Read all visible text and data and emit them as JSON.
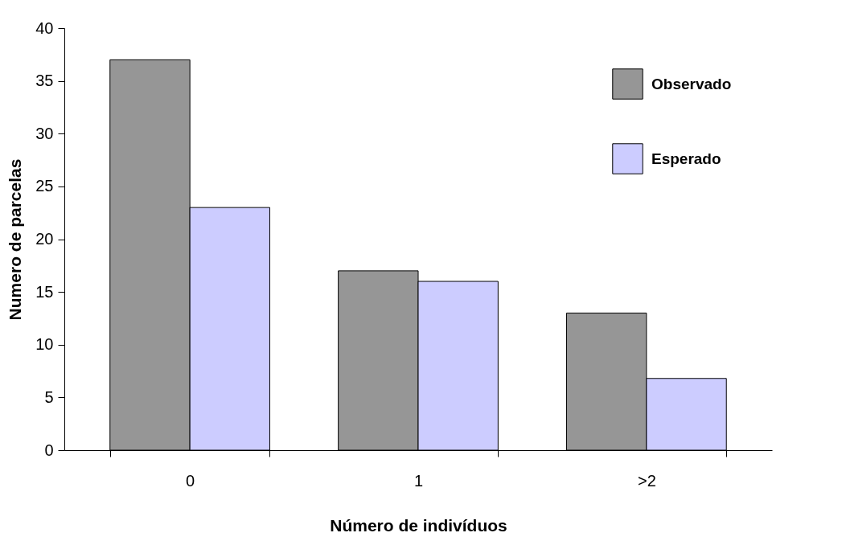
{
  "chart_data": {
    "type": "bar",
    "xlabel": "Número de indivíduos",
    "ylabel": "Numero de parcelas",
    "categories": [
      "0",
      "1",
      ">2"
    ],
    "series": [
      {
        "name": "Observado",
        "color": "#969696",
        "values": [
          37,
          17,
          13
        ]
      },
      {
        "name": "Esperado",
        "color": "#ccccff",
        "values": [
          23,
          16,
          6.8
        ]
      }
    ],
    "ylim": [
      0,
      40
    ],
    "yticks": [
      0,
      5,
      10,
      15,
      20,
      25,
      30,
      35,
      40
    ],
    "grid": false,
    "legend": "top right"
  }
}
